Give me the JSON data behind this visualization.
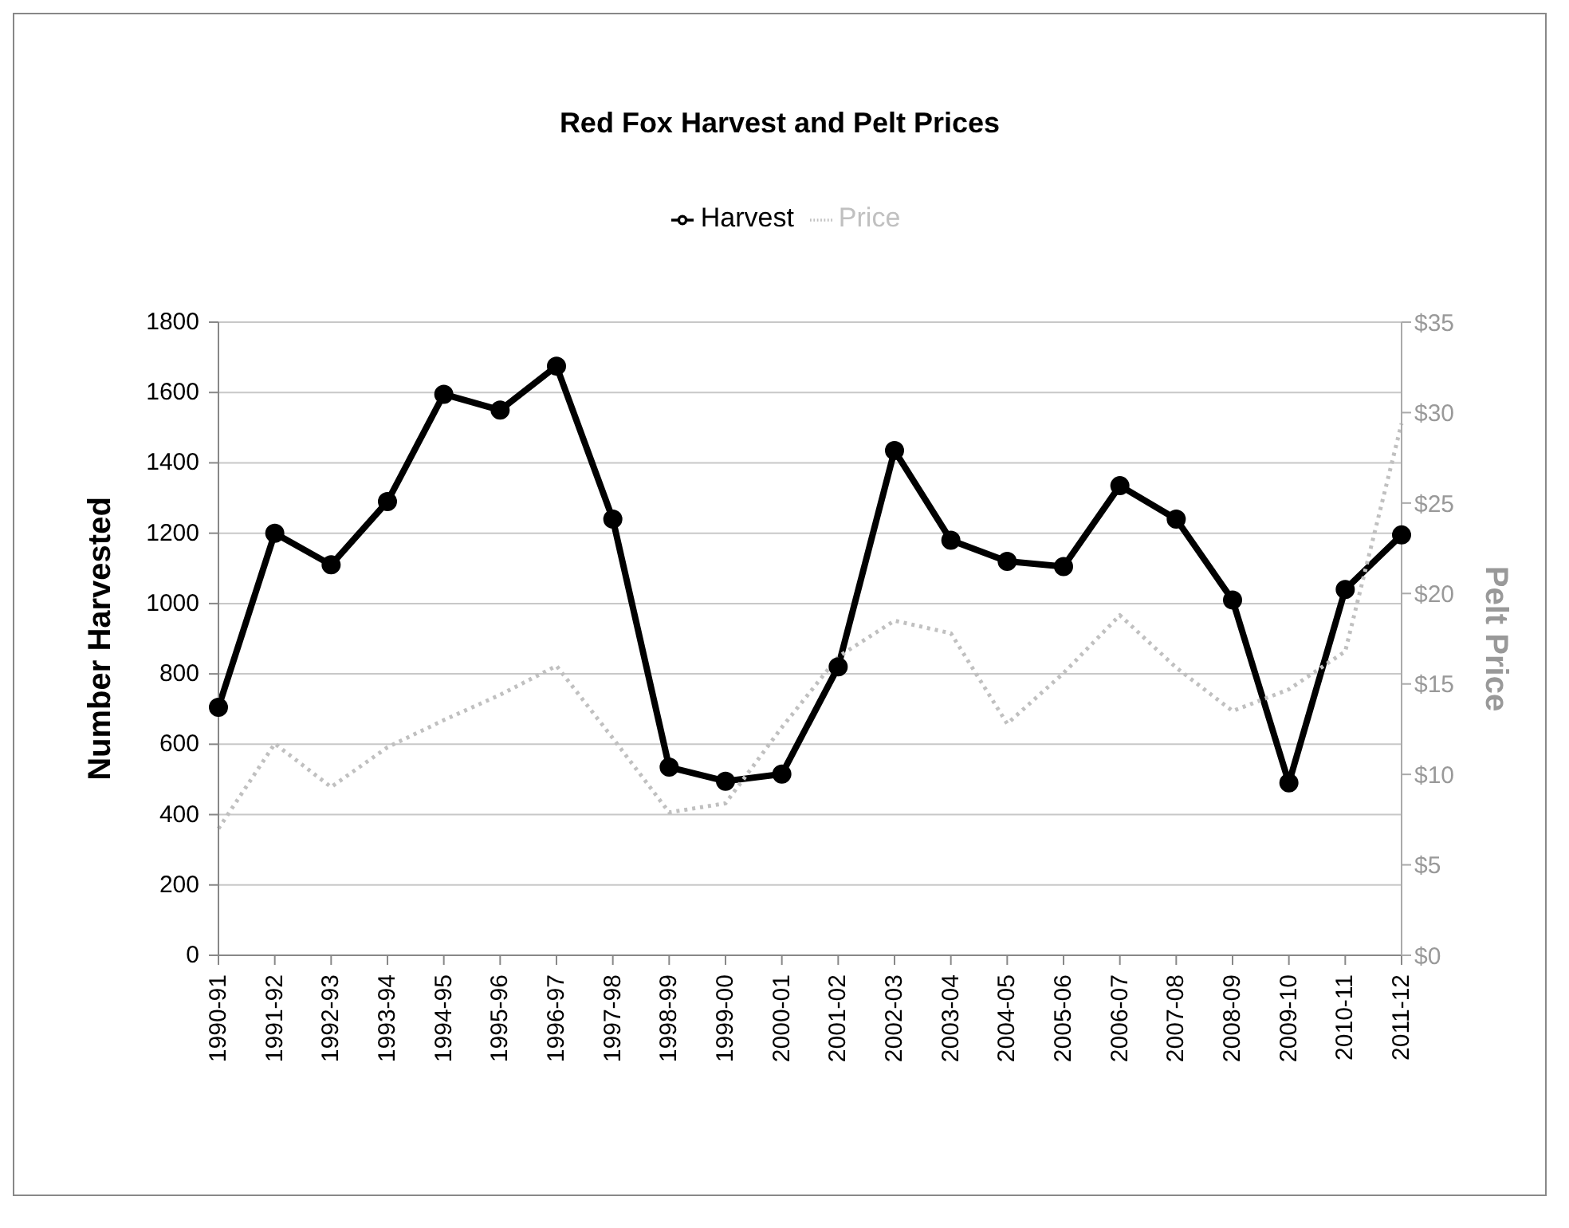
{
  "chart_data": {
    "type": "line",
    "title": "Red Fox Harvest and Pelt Prices",
    "ylabel": "Number Harvested",
    "y2label": "Pelt Price",
    "categories": [
      "1990-91",
      "1991-92",
      "1992-93",
      "1993-94",
      "1994-95",
      "1995-96",
      "1996-97",
      "1997-98",
      "1998-99",
      "1999-00",
      "2000-01",
      "2001-02",
      "2002-03",
      "2003-04",
      "2004-05",
      "2005-06",
      "2006-07",
      "2007-08",
      "2008-09",
      "2009-10",
      "2010-11",
      "2011-12"
    ],
    "series": [
      {
        "name": "Harvest",
        "color": "#000000",
        "marker": "circle",
        "line_style": "solid",
        "values": [
          705,
          1200,
          1110,
          1290,
          1595,
          1550,
          1675,
          1240,
          535,
          495,
          515,
          820,
          1435,
          1180,
          1120,
          1105,
          1335,
          1240,
          1010,
          490,
          1040,
          1195
        ]
      },
      {
        "name": "Price",
        "color": "#c0c0c0",
        "marker": "none",
        "line_style": "dotted",
        "axis": "y2",
        "values": [
          7,
          11.7,
          9.3,
          11.5,
          13,
          14.4,
          16,
          12,
          7.9,
          8.4,
          12.6,
          16.5,
          18.5,
          17.8,
          12.8,
          15.6,
          18.8,
          15.9,
          13.5,
          14.7,
          16.8,
          29.4
        ]
      }
    ],
    "ylim": [
      0,
      1800
    ],
    "yticks": [
      0,
      200,
      400,
      600,
      800,
      1000,
      1200,
      1400,
      1600,
      1800
    ],
    "y2lim": [
      0,
      35
    ],
    "y2ticks": [
      {
        "value": 0,
        "label": "$0"
      },
      {
        "value": 5,
        "label": "$5"
      },
      {
        "value": 10,
        "label": "$10"
      },
      {
        "value": 15,
        "label": "$15"
      },
      {
        "value": 20,
        "label": "$20"
      },
      {
        "value": 25,
        "label": "$25"
      },
      {
        "value": 30,
        "label": "$30"
      },
      {
        "value": 35,
        "label": "$35"
      }
    ],
    "grid": "y",
    "legend": "top"
  }
}
